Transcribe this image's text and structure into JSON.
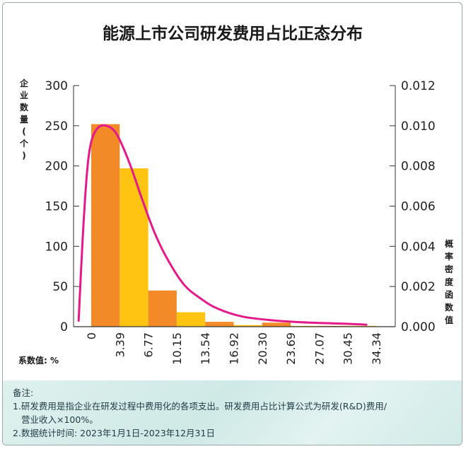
{
  "chart_data": {
    "type": "bar",
    "title": "能源上市公司研发费用占比正态分布",
    "ylabel_left": "企业数量(个)",
    "ylabel_right": "概率密度函数值",
    "xlabel": "系数值: %",
    "x_ticks": [
      "0",
      "3.39",
      "6.77",
      "10.15",
      "13.54",
      "16.92",
      "20.30",
      "23.69",
      "27.07",
      "30.45",
      "34.34"
    ],
    "left_ticks": [
      "300",
      "250",
      "200",
      "150",
      "100",
      "50",
      "0"
    ],
    "right_ticks": [
      "0.012",
      "0.010",
      "0.008",
      "0.006",
      "0.004",
      "0.002",
      "0.000"
    ],
    "ylim_left": [
      0,
      300
    ],
    "ylim_right": [
      0,
      0.012
    ],
    "bins": [
      {
        "start": 0,
        "end": 3.39,
        "value": 252,
        "color": "#f28a28"
      },
      {
        "start": 3.39,
        "end": 6.77,
        "value": 197,
        "color": "#ffc412"
      },
      {
        "start": 6.77,
        "end": 10.15,
        "value": 45,
        "color": "#f28a28"
      },
      {
        "start": 10.15,
        "end": 13.54,
        "value": 18,
        "color": "#ffc412"
      },
      {
        "start": 13.54,
        "end": 16.92,
        "value": 6,
        "color": "#f28a28"
      },
      {
        "start": 16.92,
        "end": 20.3,
        "value": 2,
        "color": "#ffc412"
      },
      {
        "start": 20.3,
        "end": 23.69,
        "value": 5,
        "color": "#f28a28"
      },
      {
        "start": 23.69,
        "end": 27.07,
        "value": 1,
        "color": "#ffc412"
      },
      {
        "start": 27.07,
        "end": 30.45,
        "value": 1,
        "color": "#f28a28"
      },
      {
        "start": 30.45,
        "end": 34.34,
        "value": 1,
        "color": "#ffc412"
      }
    ],
    "density_curve": {
      "color": "#e5198a",
      "points": [
        [
          -1.5,
          0.0003
        ],
        [
          -1.0,
          0.0045
        ],
        [
          -0.5,
          0.0077
        ],
        [
          0.0,
          0.0092
        ],
        [
          0.8,
          0.0099
        ],
        [
          1.8,
          0.01
        ],
        [
          3.0,
          0.0096
        ],
        [
          4.5,
          0.0082
        ],
        [
          6.0,
          0.0064
        ],
        [
          7.5,
          0.0047
        ],
        [
          9.0,
          0.0034
        ],
        [
          11.0,
          0.0021
        ],
        [
          13.0,
          0.0014
        ],
        [
          15.0,
          0.0009
        ],
        [
          18.0,
          0.0005
        ],
        [
          22.0,
          0.0003
        ],
        [
          26.0,
          0.0002
        ],
        [
          30.0,
          0.00015
        ],
        [
          33.0,
          0.0001
        ]
      ]
    },
    "grid": false
  },
  "notes": {
    "heading": "备注:",
    "line1": "1.研发费用是指企业在研发过程中费用化的各项支出。研发费用占比计算公式为研发(R&D)费用/",
    "line1b": "营业收入×100%。",
    "line2": "2.数据统计时间: 2023年1月1日-2023年12月31日"
  }
}
